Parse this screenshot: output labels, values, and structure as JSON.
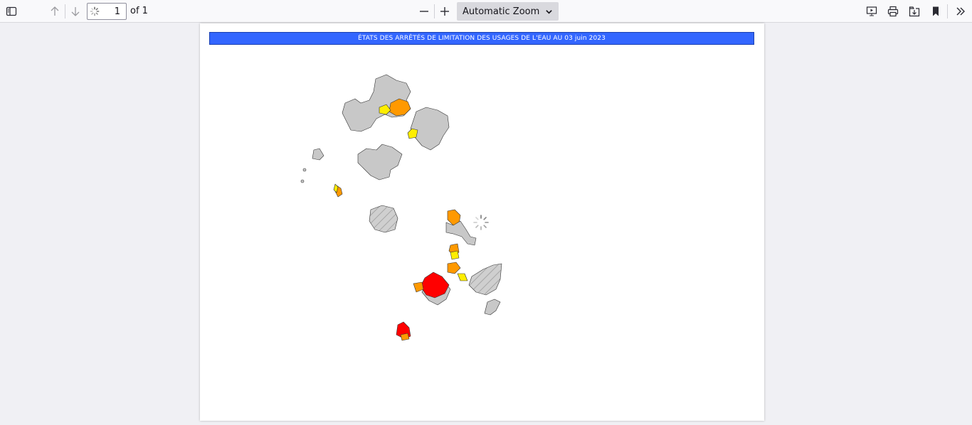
{
  "toolbar": {
    "page_number": "1",
    "page_count_label": "of 1",
    "zoom_label": "Automatic Zoom"
  },
  "icons": {
    "sidebar": "sidebar-toggle-icon",
    "prev": "arrow-up-icon",
    "next": "arrow-down-icon",
    "zoom_out": "minus-icon",
    "zoom_in": "plus-icon",
    "presentation": "presentation-icon",
    "print": "print-icon",
    "save": "save-icon",
    "bookmark": "bookmark-icon",
    "tools": "double-chevron-right-icon"
  },
  "document": {
    "banner_title": "ÉTATS DES ARRÊTÉS DE LIMITATION DES USAGES DE L'EAU AU 03 juin 2023"
  },
  "colors": {
    "banner": "#3366ff",
    "none": "#c8c8c8",
    "vigilance": "#ffee00",
    "alerte": "#ff9900",
    "alerte_renforcee": "#ff0000"
  }
}
